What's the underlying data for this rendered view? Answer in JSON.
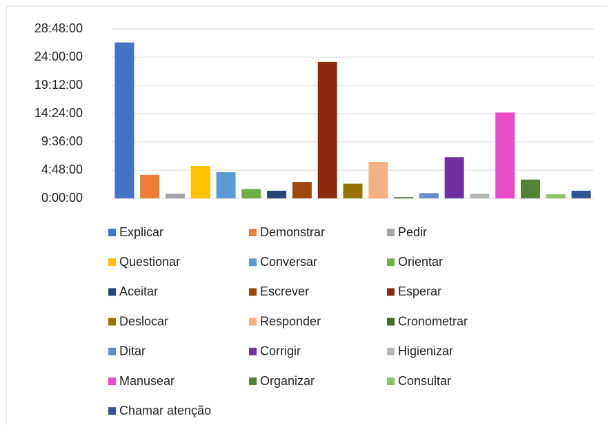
{
  "chart_data": {
    "type": "bar",
    "categories": [
      "Explicar",
      "Demonstrar",
      "Pedir",
      "Questionar",
      "Conversar",
      "Orientar",
      "Aceitar",
      "Escrever",
      "Esperar",
      "Deslocar",
      "Responder",
      "Cronometrar",
      "Ditar",
      "Corrigir",
      "Higienizar",
      "Manusear",
      "Organizar",
      "Consultar",
      "Chamar atenção"
    ],
    "values": [
      26.5,
      4.0,
      0.8,
      5.5,
      4.45,
      1.6,
      1.3,
      2.8,
      23.2,
      2.5,
      6.2,
      0.2,
      0.9,
      7.0,
      0.8,
      14.6,
      3.2,
      0.7,
      1.3
    ],
    "colors": [
      "#4472C4",
      "#ED7D31",
      "#A5A5A5",
      "#FFC000",
      "#5B9BD5",
      "#70AD47",
      "#264478",
      "#9E480E",
      "#8B2A0E",
      "#997300",
      "#F4B183",
      "#43682B",
      "#698ED0",
      "#7030A0",
      "#B7B7B7",
      "#E84BC8",
      "#548235",
      "#8CC168",
      "#2F5597"
    ],
    "ylim": [
      0,
      28.8
    ],
    "yticks": [
      {
        "value": 0,
        "label": "0:00:00"
      },
      {
        "value": 4.8,
        "label": "4:48:00"
      },
      {
        "value": 9.6,
        "label": "9:36:00"
      },
      {
        "value": 14.4,
        "label": "14:24:00"
      },
      {
        "value": 19.2,
        "label": "19:12:00"
      },
      {
        "value": 24,
        "label": "24:00:00"
      },
      {
        "value": 28.8,
        "label": "28:48:00"
      }
    ],
    "grid": true,
    "legend": "bottom"
  }
}
